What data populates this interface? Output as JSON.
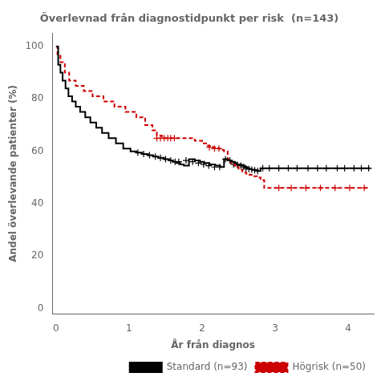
{
  "chart_data": {
    "type": "step",
    "title": "Överlevnad från diagnostidpunkt per risk  (n=143)",
    "xlabel": "År från diagnos",
    "ylabel": "Andel överlevande patienter (%)",
    "xlim": [
      -0.05,
      4.35
    ],
    "ylim": [
      -2,
      105
    ],
    "xticks": [
      0,
      1,
      2,
      3,
      4
    ],
    "yticks": [
      0,
      20,
      40,
      60,
      80,
      100
    ],
    "grid": false,
    "legend": "lower right",
    "series": [
      {
        "name": "Standard (n=93)",
        "color": "#000000",
        "line_style": "solid",
        "marker": "+",
        "x": [
          0.0,
          0.03,
          0.06,
          0.09,
          0.13,
          0.17,
          0.22,
          0.27,
          0.33,
          0.4,
          0.47,
          0.55,
          0.63,
          0.72,
          0.82,
          0.92,
          1.02,
          1.1,
          1.18,
          1.26,
          1.33,
          1.4,
          1.48,
          1.55,
          1.6,
          1.65,
          1.7,
          1.75,
          1.82,
          1.9,
          1.97,
          2.03,
          2.1,
          2.18,
          2.25,
          2.3,
          2.35,
          2.4,
          2.45,
          2.48,
          2.52,
          2.55,
          2.58,
          2.62,
          2.65,
          2.68,
          2.72,
          2.76,
          2.8,
          2.85,
          2.95,
          3.1,
          3.3,
          3.5,
          3.7,
          3.9,
          4.1,
          4.3
        ],
        "values": [
          100,
          93,
          90,
          87,
          84,
          81,
          79,
          77,
          75,
          73,
          71,
          69,
          67,
          65,
          63,
          61,
          60,
          59.5,
          59,
          58.5,
          58,
          57.5,
          57,
          56.5,
          56,
          55.5,
          55,
          54.5,
          57,
          56.5,
          56,
          55.5,
          55,
          54.5,
          54,
          57,
          56.5,
          56,
          55.5,
          55,
          54.8,
          54.5,
          54,
          53.5,
          53.2,
          53,
          52.8,
          52.5,
          53.5,
          53.5,
          53.5,
          53.5,
          53.5,
          53.5,
          53.5,
          53.5,
          53.5,
          53.5
        ],
        "censor_x": [
          1.12,
          1.2,
          1.28,
          1.36,
          1.43,
          1.5,
          1.57,
          1.63,
          1.68,
          1.78,
          1.87,
          1.95,
          2.02,
          2.09,
          2.17,
          2.24,
          2.32,
          2.38,
          2.43,
          2.48,
          2.53,
          2.57,
          2.6,
          2.64,
          2.68,
          2.72,
          2.76,
          2.83,
          2.92,
          3.05,
          3.18,
          3.3,
          3.45,
          3.58,
          3.7,
          3.85,
          3.95,
          4.08,
          4.18,
          4.28
        ],
        "censor_y": [
          59.5,
          59,
          58.5,
          58,
          57.5,
          57,
          56.5,
          56,
          56,
          56.5,
          56,
          55.5,
          55,
          54.5,
          54,
          54,
          57,
          56.5,
          55,
          54.8,
          54.5,
          54,
          53.5,
          53.2,
          53,
          52.8,
          52.5,
          53.5,
          53.5,
          53.5,
          53.5,
          53.5,
          53.5,
          53.5,
          53.5,
          53.5,
          53.5,
          53.5,
          53.5,
          53.5
        ]
      },
      {
        "name": "Högrisk (n=50)",
        "color": "#cc0000",
        "line_style": "dashed",
        "marker": "+",
        "x": [
          0.0,
          0.02,
          0.06,
          0.12,
          0.18,
          0.27,
          0.38,
          0.5,
          0.65,
          0.8,
          0.95,
          1.1,
          1.22,
          1.32,
          1.38,
          1.45,
          1.52,
          1.6,
          1.68,
          1.78,
          1.9,
          2.0,
          2.08,
          2.15,
          2.22,
          2.27,
          2.3,
          2.35,
          2.4,
          2.45,
          2.5,
          2.55,
          2.6,
          2.65,
          2.7,
          2.75,
          2.8,
          2.85,
          3.0,
          3.2,
          3.4,
          3.6,
          3.8,
          4.0,
          4.2,
          4.3
        ],
        "values": [
          100,
          97,
          94,
          90,
          87,
          85,
          83,
          81,
          79,
          77,
          75,
          73,
          70,
          68,
          66,
          65,
          65,
          65,
          65,
          65,
          64,
          63,
          62,
          61.5,
          61,
          60.5,
          60,
          57,
          55,
          54,
          53,
          52,
          51.5,
          51,
          50.5,
          50,
          49,
          46,
          46,
          46,
          46,
          46,
          46,
          46,
          46,
          46
        ],
        "censor_x": [
          1.38,
          1.43,
          1.48,
          1.53,
          1.57,
          1.62,
          2.1,
          2.17,
          2.23,
          3.05,
          3.22,
          3.42,
          3.62,
          3.82,
          4.02,
          4.22
        ],
        "censor_y": [
          65,
          65,
          65,
          65,
          65,
          65,
          61.5,
          61,
          61,
          46,
          46,
          46,
          46,
          46,
          46,
          46
        ]
      }
    ]
  }
}
